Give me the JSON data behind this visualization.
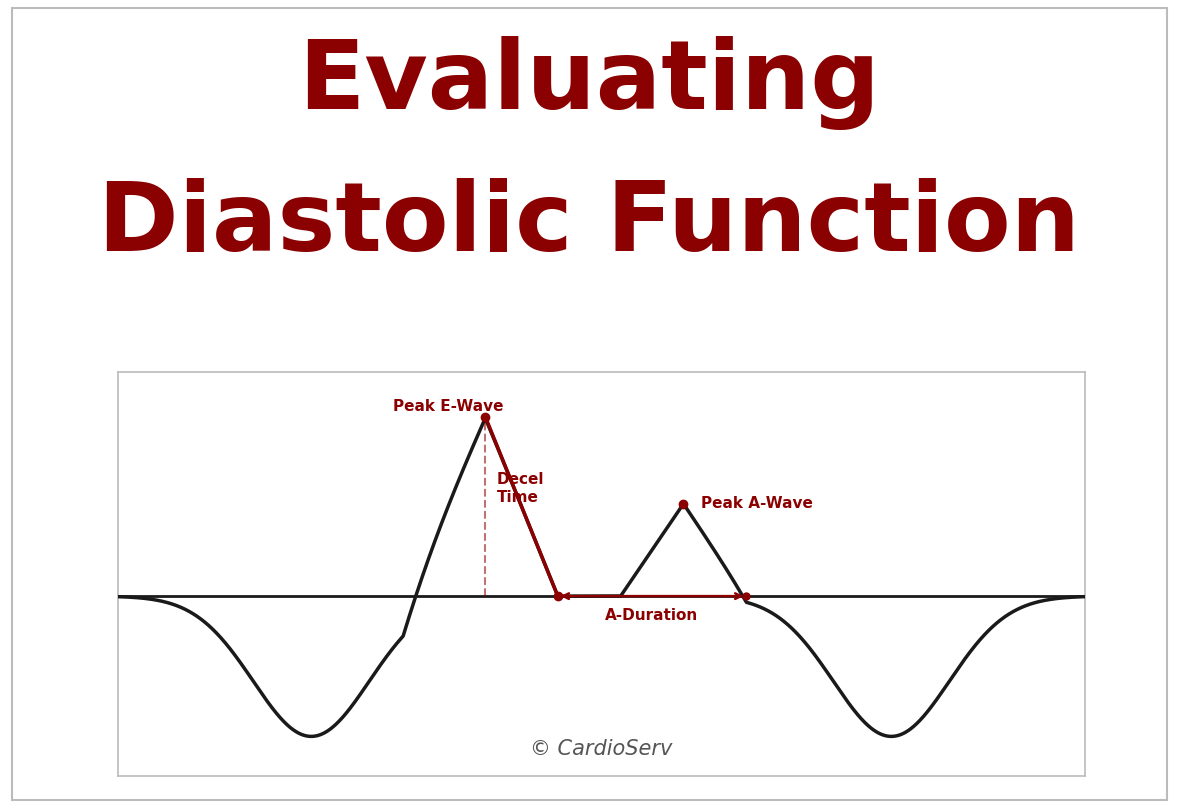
{
  "title_line1": "Evaluating",
  "title_line2": "Diastolic Function",
  "title_color": "#8B0000",
  "title_fontsize": 70,
  "title_fontweight": "bold",
  "background_color": "#ffffff",
  "border_color": "#bbbbbb",
  "waveform_color": "#1a1a1a",
  "annotation_color": "#8B0000",
  "label_peak_e": "Peak E-Wave",
  "label_decel_1": "Decel",
  "label_decel_2": "Time",
  "label_peak_a": "Peak A-Wave",
  "label_a_duration": "A-Duration",
  "copyright_text": "© CardioServ",
  "copyright_color": "#555555",
  "copyright_fontsize": 15,
  "ann_fontsize": 11,
  "ann_fontweight": "bold"
}
